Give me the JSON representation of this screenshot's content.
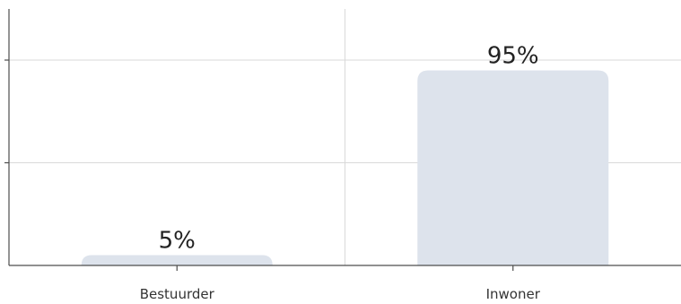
{
  "chart_data": {
    "type": "bar",
    "categories": [
      "Bestuurder",
      "Inwoner"
    ],
    "values": [
      5,
      95
    ],
    "data_labels": [
      "5%",
      "95%"
    ],
    "title": "",
    "xlabel": "",
    "ylabel": "",
    "ylim": [
      0,
      100
    ],
    "grid": true,
    "bar_color": "#dde3ec"
  }
}
